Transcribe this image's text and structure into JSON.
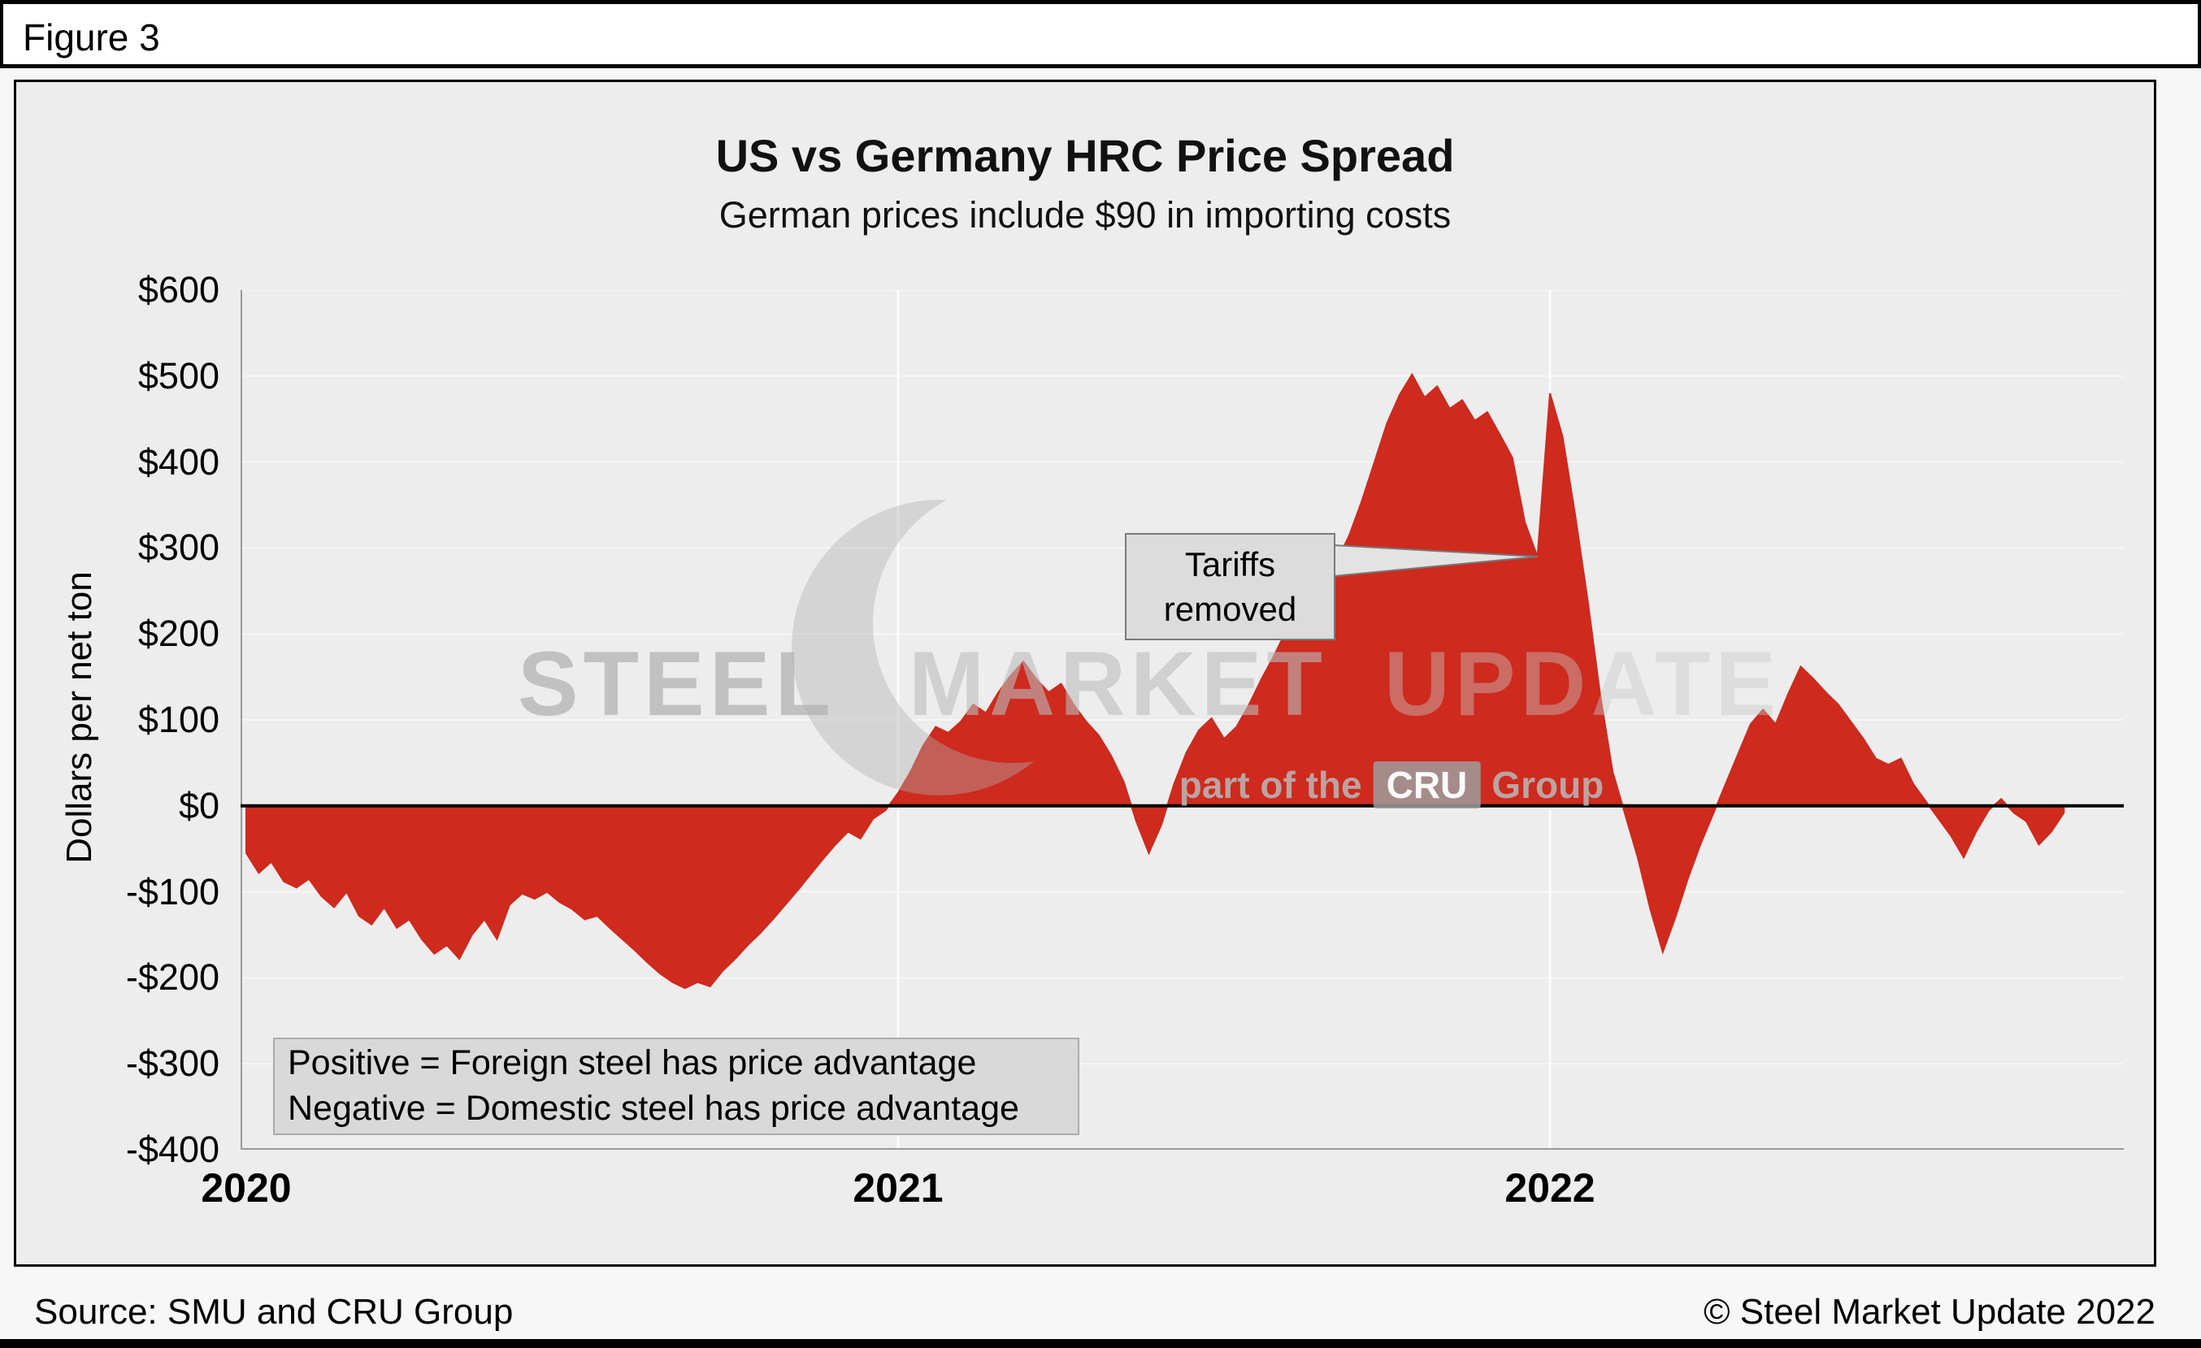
{
  "figure_label": "Figure 3",
  "chart": {
    "title": "US vs Germany HRC Price Spread",
    "subtitle": "German prices include $90 in importing costs",
    "y_axis_title": "Dollars per net ton"
  },
  "annotations": {
    "tariffs_line1": "Tariffs",
    "tariffs_line2": "removed",
    "note_line1": "Positive = Foreign steel has price advantage",
    "note_line2": "Negative = Domestic steel has price advantage"
  },
  "watermark": {
    "word1": "STEEL",
    "word2": "MARKET",
    "word3": "UPDATE",
    "tagline_pre": "part of the",
    "tagline_cru": "CRU",
    "tagline_post": "Group"
  },
  "footer": {
    "source": "Source: SMU and CRU Group",
    "copyright": "© Steel Market Update 2022"
  },
  "chart_data": {
    "type": "area",
    "title": "US vs Germany HRC Price Spread",
    "subtitle": "German prices include $90 in importing costs",
    "ylabel": "Dollars per net ton",
    "ylim": [
      -400,
      600
    ],
    "ytick_step": 100,
    "ytick_labels": [
      "$600",
      "$500",
      "$400",
      "$300",
      "$200",
      "$100",
      "$0",
      "-$100",
      "-$200",
      "-$300",
      "-$400"
    ],
    "x_unit": "week",
    "x_year_ticks": [
      {
        "label": "2020",
        "week": 0
      },
      {
        "label": "2021",
        "week": 52
      },
      {
        "label": "2022",
        "week": 104
      }
    ],
    "area_color": "#CE2A1E",
    "zero_line_color": "#000000",
    "grid": true,
    "callout_week": 103,
    "callout_value": 290,
    "values": [
      -55,
      -78,
      -65,
      -88,
      -95,
      -85,
      -105,
      -118,
      -100,
      -128,
      -138,
      -118,
      -142,
      -132,
      -155,
      -172,
      -162,
      -178,
      -150,
      -132,
      -155,
      -115,
      -102,
      -108,
      -100,
      -112,
      -120,
      -132,
      -128,
      -142,
      -155,
      -168,
      -182,
      -195,
      -205,
      -212,
      -205,
      -210,
      -192,
      -178,
      -162,
      -148,
      -132,
      -115,
      -98,
      -80,
      -62,
      -45,
      -30,
      -38,
      -15,
      -5,
      15,
      40,
      70,
      92,
      85,
      98,
      118,
      108,
      132,
      152,
      168,
      148,
      132,
      142,
      118,
      98,
      82,
      58,
      28,
      -18,
      -55,
      -22,
      25,
      62,
      88,
      102,
      78,
      92,
      118,
      148,
      175,
      205,
      235,
      268,
      298,
      285,
      315,
      355,
      400,
      445,
      478,
      502,
      475,
      488,
      462,
      472,
      448,
      458,
      432,
      405,
      330,
      290,
      480,
      430,
      340,
      240,
      130,
      40,
      -10,
      -60,
      -120,
      -170,
      -130,
      -85,
      -45,
      -10,
      25,
      60,
      95,
      112,
      95,
      130,
      162,
      148,
      132,
      118,
      98,
      78,
      55,
      48,
      55,
      25,
      5,
      -15,
      -35,
      -60,
      -30,
      -5,
      8,
      -8,
      -18,
      -45,
      -30,
      -8
    ]
  }
}
